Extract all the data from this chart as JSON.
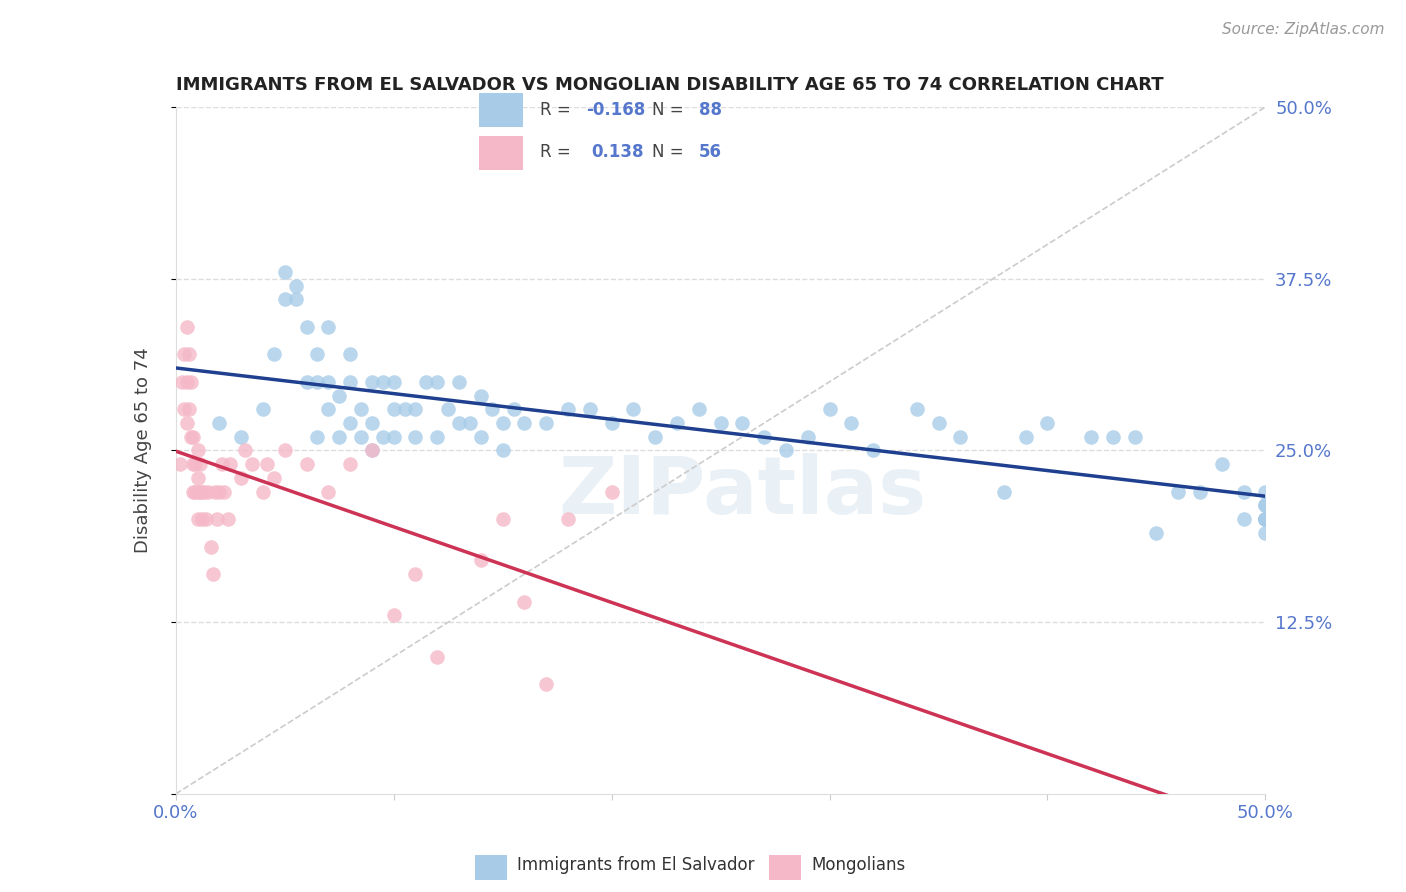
{
  "title": "IMMIGRANTS FROM EL SALVADOR VS MONGOLIAN DISABILITY AGE 65 TO 74 CORRELATION CHART",
  "source": "Source: ZipAtlas.com",
  "ylabel": "Disability Age 65 to 74",
  "xlim": [
    0.0,
    0.5
  ],
  "ylim": [
    0.0,
    0.5
  ],
  "blue_color": "#a8cce8",
  "pink_color": "#f5b8c8",
  "blue_line_color": "#1f3f8f",
  "pink_line_color": "#cc3355",
  "diag_color": "#cccccc",
  "grid_color": "#dddddd",
  "tick_color": "#5577cc",
  "watermark": "ZIPatlas",
  "legend_blue_r": "-0.168",
  "legend_blue_n": "88",
  "legend_pink_r": "0.138",
  "legend_pink_n": "56",
  "blue_scatter_x": [
    0.02,
    0.03,
    0.04,
    0.045,
    0.05,
    0.05,
    0.055,
    0.055,
    0.06,
    0.06,
    0.065,
    0.065,
    0.065,
    0.07,
    0.07,
    0.07,
    0.075,
    0.075,
    0.08,
    0.08,
    0.08,
    0.085,
    0.085,
    0.09,
    0.09,
    0.09,
    0.095,
    0.095,
    0.1,
    0.1,
    0.1,
    0.105,
    0.11,
    0.11,
    0.115,
    0.12,
    0.12,
    0.125,
    0.13,
    0.13,
    0.135,
    0.14,
    0.14,
    0.145,
    0.15,
    0.15,
    0.155,
    0.16,
    0.17,
    0.18,
    0.19,
    0.2,
    0.21,
    0.22,
    0.23,
    0.24,
    0.25,
    0.26,
    0.27,
    0.28,
    0.29,
    0.3,
    0.31,
    0.32,
    0.34,
    0.35,
    0.36,
    0.38,
    0.39,
    0.4,
    0.42,
    0.43,
    0.44,
    0.45,
    0.46,
    0.47,
    0.48,
    0.49,
    0.49,
    0.5,
    0.5,
    0.5,
    0.5,
    0.5,
    0.5,
    0.5,
    0.5,
    0.5
  ],
  "blue_scatter_y": [
    0.27,
    0.26,
    0.28,
    0.32,
    0.36,
    0.38,
    0.36,
    0.37,
    0.3,
    0.34,
    0.26,
    0.3,
    0.32,
    0.28,
    0.3,
    0.34,
    0.26,
    0.29,
    0.27,
    0.3,
    0.32,
    0.26,
    0.28,
    0.25,
    0.27,
    0.3,
    0.26,
    0.3,
    0.26,
    0.28,
    0.3,
    0.28,
    0.26,
    0.28,
    0.3,
    0.26,
    0.3,
    0.28,
    0.27,
    0.3,
    0.27,
    0.26,
    0.29,
    0.28,
    0.25,
    0.27,
    0.28,
    0.27,
    0.27,
    0.28,
    0.28,
    0.27,
    0.28,
    0.26,
    0.27,
    0.28,
    0.27,
    0.27,
    0.26,
    0.25,
    0.26,
    0.28,
    0.27,
    0.25,
    0.28,
    0.27,
    0.26,
    0.22,
    0.26,
    0.27,
    0.26,
    0.26,
    0.26,
    0.19,
    0.22,
    0.22,
    0.24,
    0.22,
    0.2,
    0.2,
    0.22,
    0.2,
    0.21,
    0.19,
    0.2,
    0.21,
    0.2,
    0.2
  ],
  "pink_scatter_x": [
    0.002,
    0.003,
    0.004,
    0.004,
    0.005,
    0.005,
    0.005,
    0.006,
    0.006,
    0.007,
    0.007,
    0.008,
    0.008,
    0.008,
    0.009,
    0.009,
    0.01,
    0.01,
    0.01,
    0.01,
    0.011,
    0.011,
    0.012,
    0.012,
    0.013,
    0.014,
    0.015,
    0.016,
    0.017,
    0.018,
    0.019,
    0.02,
    0.021,
    0.022,
    0.024,
    0.025,
    0.03,
    0.032,
    0.035,
    0.04,
    0.042,
    0.045,
    0.05,
    0.06,
    0.07,
    0.08,
    0.09,
    0.1,
    0.11,
    0.12,
    0.14,
    0.15,
    0.16,
    0.17,
    0.18,
    0.2
  ],
  "pink_scatter_y": [
    0.24,
    0.3,
    0.28,
    0.32,
    0.27,
    0.3,
    0.34,
    0.28,
    0.32,
    0.26,
    0.3,
    0.22,
    0.24,
    0.26,
    0.22,
    0.24,
    0.23,
    0.25,
    0.22,
    0.2,
    0.22,
    0.24,
    0.22,
    0.2,
    0.22,
    0.2,
    0.22,
    0.18,
    0.16,
    0.22,
    0.2,
    0.22,
    0.24,
    0.22,
    0.2,
    0.24,
    0.23,
    0.25,
    0.24,
    0.22,
    0.24,
    0.23,
    0.25,
    0.24,
    0.22,
    0.24,
    0.25,
    0.13,
    0.16,
    0.1,
    0.17,
    0.2,
    0.14,
    0.08,
    0.2,
    0.22
  ]
}
